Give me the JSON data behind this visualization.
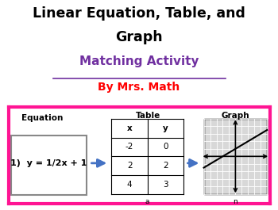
{
  "title_line1": "Linear Equation, Table, and",
  "title_line2": "Graph",
  "subtitle": "Matching Activity",
  "author": "By Mrs. Math",
  "title_color": "#000000",
  "subtitle_color": "#7030A0",
  "author_color": "#FF0000",
  "bg_color": "#FFFFFF",
  "box_border_color": "#FF1493",
  "equation_label": "Equation",
  "equation_text": "1)  y = 1/2x + 1",
  "table_label": "Table",
  "table_headers": [
    "x",
    "y"
  ],
  "table_rows": [
    [
      "-2",
      "0"
    ],
    [
      "2",
      "2"
    ],
    [
      "4",
      "3"
    ]
  ],
  "table_footer": "a",
  "graph_label": "Graph",
  "graph_footer": "n",
  "arrow_color": "#4472C4",
  "grid_color": "#C8C8C8",
  "graph_bg": "#D8D8D8"
}
